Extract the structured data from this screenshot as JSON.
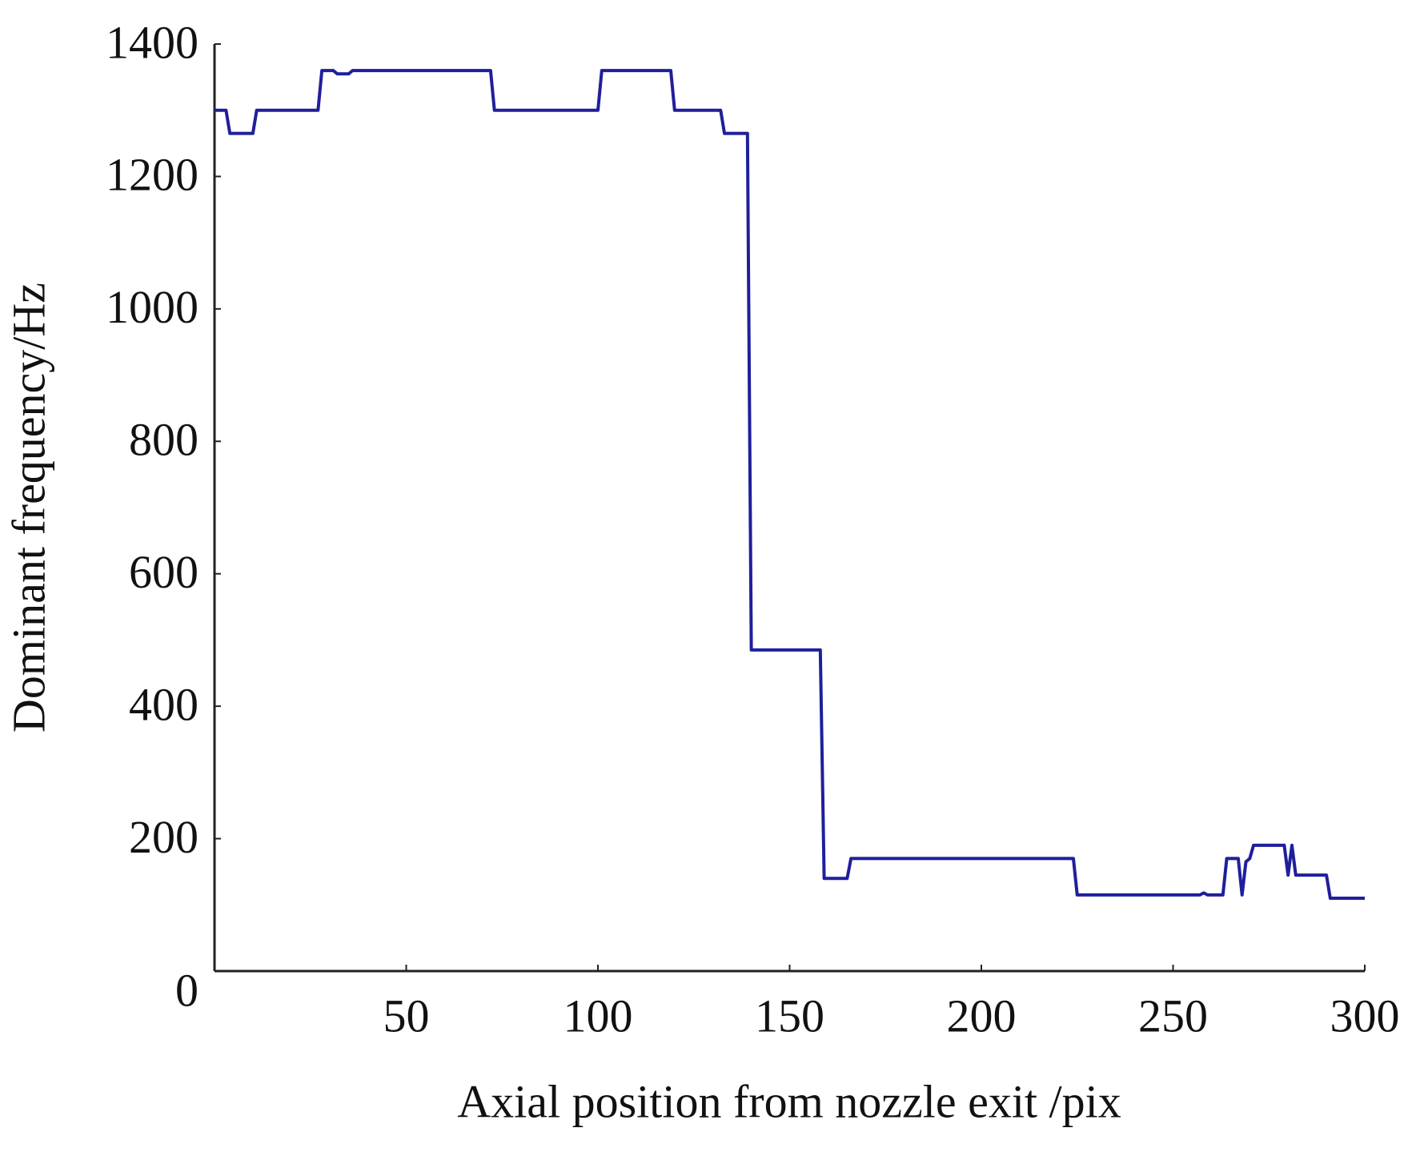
{
  "chart_data": {
    "type": "line",
    "xlabel": "Axial position from nozzle exit /pix",
    "ylabel": "Dominant frequency/Hz",
    "x": [
      0,
      3,
      4,
      10,
      11,
      27,
      28,
      31,
      32,
      35,
      36,
      72,
      73,
      100,
      101,
      119,
      120,
      132,
      133,
      139,
      140,
      158,
      159,
      165,
      166,
      224,
      225,
      257,
      258,
      259,
      263,
      264,
      267,
      268,
      269,
      270,
      271,
      279,
      280,
      281,
      282,
      290,
      291,
      300
    ],
    "series": [
      {
        "color": "#1f1f9c",
        "values": [
          1300,
          1300,
          1265,
          1265,
          1300,
          1300,
          1360,
          1360,
          1355,
          1355,
          1360,
          1360,
          1300,
          1300,
          1360,
          1360,
          1300,
          1300,
          1265,
          1265,
          485,
          485,
          140,
          140,
          170,
          170,
          115,
          115,
          118,
          115,
          115,
          170,
          170,
          115,
          165,
          170,
          190,
          190,
          145,
          190,
          145,
          145,
          110,
          110
        ]
      }
    ],
    "xlim": [
      0,
      300
    ],
    "xticks": [
      50,
      100,
      150,
      200,
      250,
      300
    ],
    "ylim": [
      0,
      1400
    ],
    "yticks": [
      0,
      200,
      400,
      600,
      800,
      1000,
      1200,
      1400
    ]
  }
}
